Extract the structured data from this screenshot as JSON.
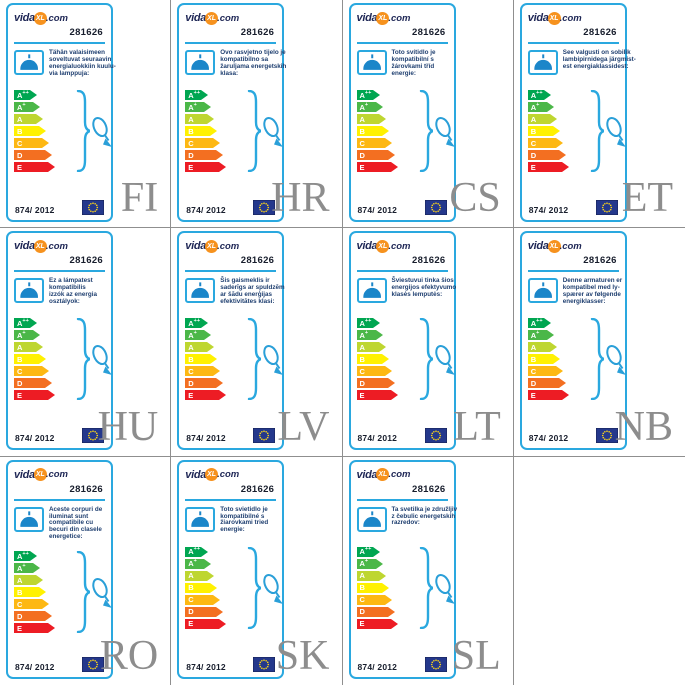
{
  "logo": {
    "prefix": "vida",
    "circle": "XL",
    "suffix": ".com"
  },
  "product_number": "281626",
  "regulation": "874/ 2012",
  "colors": {
    "accent_blue": "#2aa8df",
    "lamp_blue": "#1b86c9",
    "logo_navy": "#1e2655",
    "text_navy": "#1f3f70",
    "logo_orange": "#f6921e",
    "flag_blue": "#24388c",
    "star_gold": "#ffd617",
    "lang_gray": "#8d8d8d",
    "grid_gray": "#8f8f8f"
  },
  "icons": {
    "pendant_lamp": "pendant-lamp-icon",
    "brace": "curly-brace-icon",
    "bulb_arrow": "bulb-arrow-icon",
    "eu_flag": "eu-flag-icon"
  },
  "energy_classes": [
    {
      "label": "A++",
      "color": "#00a651"
    },
    {
      "label": "A+",
      "color": "#4bb748"
    },
    {
      "label": "A",
      "color": "#bed630"
    },
    {
      "label": "B",
      "color": "#fff101"
    },
    {
      "label": "C",
      "color": "#fdb813"
    },
    {
      "label": "D",
      "color": "#f36f21"
    },
    {
      "label": "E",
      "color": "#ed1c24"
    }
  ],
  "cards": [
    {
      "lang": "FI",
      "lines": [
        "Tähän valaisimeen",
        "soveltuvat seuraavin",
        "energialuokkiin kuulu-",
        "via lamppuja:"
      ]
    },
    {
      "lang": "HR",
      "lines": [
        "Ovo rasvjetno tijelo je",
        "kompatibilno sa",
        "žaruljama energetskih",
        "klasa:"
      ]
    },
    {
      "lang": "CS",
      "lines": [
        "Toto svítidlo je",
        "kompatibilní s",
        "žárovkami tříd",
        "energie:"
      ]
    },
    {
      "lang": "ET",
      "lines": [
        "See valgusti on sobilik",
        "lambipirnidega järgmist-",
        "est energiaklassidest:"
      ]
    },
    {
      "lang": "HU",
      "lines": [
        "Ez a lámpatest",
        "kompatibilis",
        "izzók az energia",
        "osztályok:"
      ]
    },
    {
      "lang": "LV",
      "lines": [
        "Šis gaismeklis ir",
        "saderīgs ar spuldzēm",
        "ar šādu enerģijas",
        "efektivitātes klasi:"
      ]
    },
    {
      "lang": "LT",
      "lines": [
        "Šviestuvui tinka šios",
        "energijos efektyvumo",
        "klasės lemputės:"
      ]
    },
    {
      "lang": "NB",
      "lines": [
        "Denne armaturen er",
        "kompatibel med ly-",
        "spærer av følgende",
        "energiklasser:"
      ]
    },
    {
      "lang": "RO",
      "lines": [
        "Aceste corpuri de",
        "iluminat sunt",
        "compatibile cu",
        "becuri din clasele",
        "energetice:"
      ]
    },
    {
      "lang": "SK",
      "lines": [
        "Toto svietidlo je",
        "kompatibilné s",
        "žiarovkami tried",
        "energie:"
      ]
    },
    {
      "lang": "SL",
      "lines": [
        "Ta svetilka je združljiv",
        "z čebulic energetskih",
        "razredov:"
      ]
    }
  ]
}
